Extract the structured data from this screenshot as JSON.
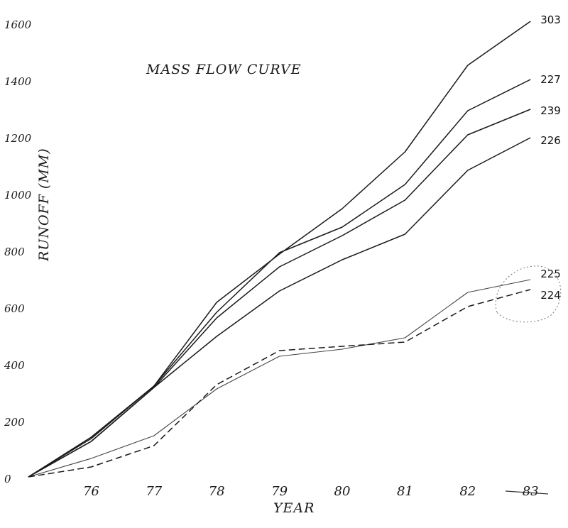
{
  "chart_data": {
    "type": "line",
    "title": "MASS FLOW CURVE",
    "xlabel": "YEAR",
    "ylabel": "RUNOFF (MM)",
    "x": [
      75,
      76,
      77,
      78,
      79,
      80,
      81,
      82,
      83
    ],
    "x_tick_labels": [
      "76",
      "77",
      "78",
      "79",
      "80",
      "81",
      "82",
      "83"
    ],
    "y_tick_labels": [
      "0",
      "200",
      "400",
      "600",
      "800",
      "1000",
      "1200",
      "1400",
      "1600"
    ],
    "ylim": [
      0,
      1600
    ],
    "xlim": [
      75,
      84
    ],
    "grid": false,
    "series": [
      {
        "name": "303",
        "line": "solid",
        "color": "#1a1a1a",
        "values": [
          0,
          140,
          320,
          615,
          785,
          945,
          1145,
          1450,
          1605
        ]
      },
      {
        "name": "227",
        "line": "solid",
        "color": "#1a1a1a",
        "values": [
          0,
          135,
          320,
          580,
          790,
          880,
          1030,
          1290,
          1400
        ]
      },
      {
        "name": "239",
        "line": "solid",
        "color": "#1a1a1a",
        "values": [
          0,
          125,
          315,
          560,
          740,
          850,
          975,
          1205,
          1295
        ]
      },
      {
        "name": "226",
        "line": "solid",
        "color": "#1a1a1a",
        "values": [
          0,
          125,
          315,
          495,
          655,
          765,
          855,
          1080,
          1195
        ]
      },
      {
        "name": "225",
        "line": "dotted-solid",
        "color": "#444444",
        "values": [
          0,
          65,
          145,
          310,
          425,
          450,
          490,
          650,
          695
        ]
      },
      {
        "name": "224",
        "line": "dashed",
        "color": "#1a1a1a",
        "values": [
          0,
          35,
          110,
          325,
          445,
          460,
          475,
          600,
          660
        ]
      }
    ]
  }
}
